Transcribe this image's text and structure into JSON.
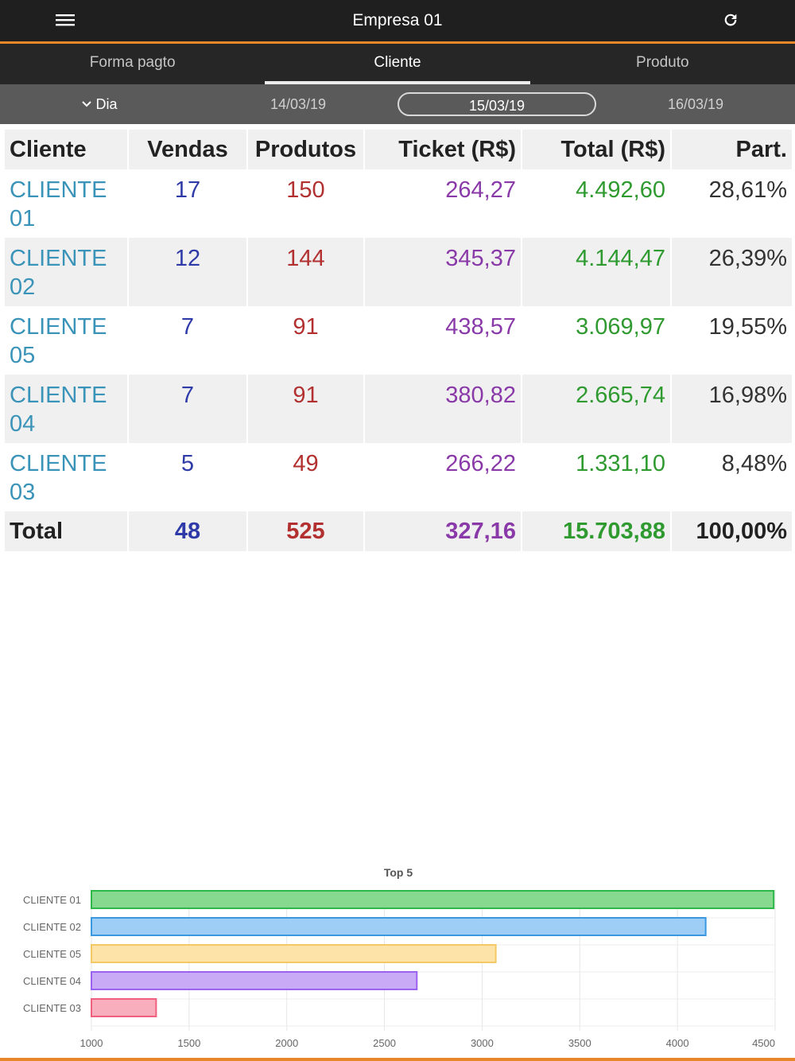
{
  "appbar": {
    "title": "Empresa 01",
    "menu_icon": "menu-icon",
    "refresh_icon": "refresh-icon"
  },
  "tabs": [
    {
      "label": "Forma pagto"
    },
    {
      "label": "Cliente",
      "active": true
    },
    {
      "label": "Produto"
    }
  ],
  "datebar": {
    "period_label": "Dia",
    "prev_date": "14/03/19",
    "current_date": "15/03/19",
    "next_date": "16/03/19"
  },
  "table": {
    "headers": {
      "cliente": "Cliente",
      "vendas": "Vendas",
      "produtos": "Produtos",
      "ticket": "Ticket (R$)",
      "total": "Total (R$)",
      "part": "Part."
    },
    "rows": [
      {
        "cliente": "CLIENTE 01",
        "vendas": "17",
        "produtos": "150",
        "ticket": "264,27",
        "total": "4.492,60",
        "part": "28,61%"
      },
      {
        "cliente": "CLIENTE 02",
        "vendas": "12",
        "produtos": "144",
        "ticket": "345,37",
        "total": "4.144,47",
        "part": "26,39%"
      },
      {
        "cliente": "CLIENTE 05",
        "vendas": "7",
        "produtos": "91",
        "ticket": "438,57",
        "total": "3.069,97",
        "part": "19,55%"
      },
      {
        "cliente": "CLIENTE 04",
        "vendas": "7",
        "produtos": "91",
        "ticket": "380,82",
        "total": "2.665,74",
        "part": "16,98%"
      },
      {
        "cliente": "CLIENTE 03",
        "vendas": "5",
        "produtos": "49",
        "ticket": "266,22",
        "total": "1.331,10",
        "part": "8,48%"
      }
    ],
    "total_row": {
      "cliente": "Total",
      "vendas": "48",
      "produtos": "525",
      "ticket": "327,16",
      "total": "15.703,88",
      "part": "100,00%"
    }
  },
  "colors": {
    "accent": "#e8862a",
    "appbar": "#1f1f1f",
    "tabs": "#262626",
    "datebar": "#5a5a5a"
  },
  "chart_data": {
    "type": "bar",
    "orientation": "horizontal",
    "title": "Top 5",
    "categories": [
      "CLIENTE 01",
      "CLIENTE 02",
      "CLIENTE 05",
      "CLIENTE 04",
      "CLIENTE 03"
    ],
    "values": [
      4492.6,
      4144.47,
      3069.97,
      2665.74,
      1331.1
    ],
    "xlim": [
      1000,
      4500
    ],
    "xticks": [
      "1000",
      "1500",
      "2000",
      "2500",
      "3000",
      "3500",
      "4000",
      "4500"
    ],
    "grid": true,
    "colors": [
      {
        "fill": "#86d98f",
        "stroke": "#2fb84a"
      },
      {
        "fill": "#9ecef5",
        "stroke": "#3a98e0"
      },
      {
        "fill": "#fde3a8",
        "stroke": "#f5c866"
      },
      {
        "fill": "#c9aaf7",
        "stroke": "#9a62ee"
      },
      {
        "fill": "#f9aebd",
        "stroke": "#f0607e"
      }
    ]
  }
}
